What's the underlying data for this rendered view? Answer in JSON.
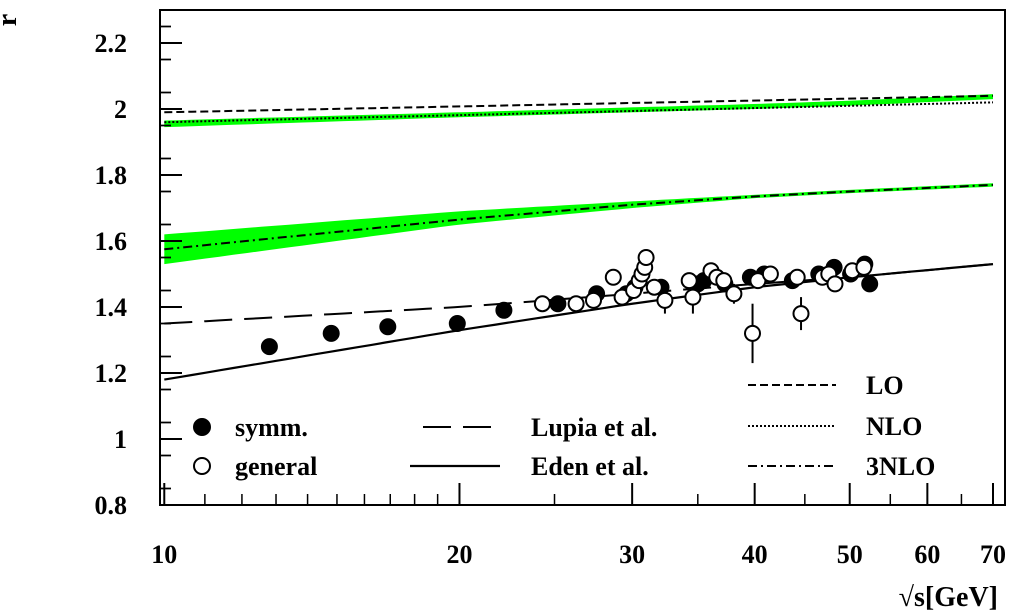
{
  "chart_data": {
    "type": "scatter",
    "title": "",
    "xlabel": "√s[GeV]",
    "ylabel": "r",
    "x_scale": "log",
    "xlim": [
      9.9,
      72
    ],
    "ylim": [
      0.8,
      2.3
    ],
    "x_ticks": [
      10,
      20,
      30,
      40,
      50,
      60,
      70
    ],
    "x_tick_labels": [
      "10",
      "20",
      "30",
      "40",
      "50",
      "60",
      "70"
    ],
    "y_ticks": [
      0.8,
      1,
      1.2,
      1.4,
      1.6,
      1.8,
      2,
      2.2
    ],
    "y_tick_labels": [
      "0.8",
      "1",
      "1.2",
      "1.4",
      "1.6",
      "1.8",
      "2",
      "2.2"
    ],
    "grid": false,
    "band_color": "#00ff00",
    "series": [
      {
        "name": "symm.",
        "kind": "points",
        "marker": "filled-circle",
        "points": [
          {
            "x": 12.8,
            "y": 1.28
          },
          {
            "x": 14.8,
            "y": 1.32
          },
          {
            "x": 16.9,
            "y": 1.34
          },
          {
            "x": 19.9,
            "y": 1.35
          },
          {
            "x": 22.2,
            "y": 1.39
          },
          {
            "x": 25.2,
            "y": 1.41
          },
          {
            "x": 27.6,
            "y": 1.44
          },
          {
            "x": 29.6,
            "y": 1.44
          },
          {
            "x": 30.2,
            "y": 1.46
          },
          {
            "x": 32.1,
            "y": 1.46
          },
          {
            "x": 35.0,
            "y": 1.47
          },
          {
            "x": 35.5,
            "y": 1.48
          },
          {
            "x": 37.3,
            "y": 1.47
          },
          {
            "x": 39.6,
            "y": 1.49
          },
          {
            "x": 40.9,
            "y": 1.5
          },
          {
            "x": 43.7,
            "y": 1.48
          },
          {
            "x": 46.5,
            "y": 1.5
          },
          {
            "x": 48.2,
            "y": 1.52
          },
          {
            "x": 50.1,
            "y": 1.5
          },
          {
            "x": 51.8,
            "y": 1.53
          },
          {
            "x": 52.4,
            "y": 1.47
          }
        ]
      },
      {
        "name": "general",
        "kind": "points",
        "marker": "open-circle",
        "points": [
          {
            "x": 24.3,
            "y": 1.41,
            "err": 0
          },
          {
            "x": 26.3,
            "y": 1.41,
            "err": 0
          },
          {
            "x": 27.4,
            "y": 1.42,
            "err": 0
          },
          {
            "x": 28.7,
            "y": 1.49,
            "err": 0
          },
          {
            "x": 29.3,
            "y": 1.43,
            "err": 0
          },
          {
            "x": 30.1,
            "y": 1.45,
            "err": 0
          },
          {
            "x": 30.5,
            "y": 1.48,
            "err": 0
          },
          {
            "x": 30.7,
            "y": 1.5,
            "err": 0
          },
          {
            "x": 30.9,
            "y": 1.52,
            "err": 0
          },
          {
            "x": 31.0,
            "y": 1.55,
            "err": 0
          },
          {
            "x": 31.6,
            "y": 1.46,
            "err": 0
          },
          {
            "x": 32.4,
            "y": 1.42,
            "err": 0.04
          },
          {
            "x": 34.3,
            "y": 1.48,
            "err": 0
          },
          {
            "x": 34.6,
            "y": 1.43,
            "err": 0.05
          },
          {
            "x": 36.1,
            "y": 1.51,
            "err": 0
          },
          {
            "x": 36.6,
            "y": 1.49,
            "err": 0
          },
          {
            "x": 37.2,
            "y": 1.48,
            "err": 0
          },
          {
            "x": 38.1,
            "y": 1.44,
            "err": 0.03
          },
          {
            "x": 39.8,
            "y": 1.32,
            "err": 0.09
          },
          {
            "x": 40.3,
            "y": 1.48,
            "err": 0
          },
          {
            "x": 41.5,
            "y": 1.5,
            "err": 0
          },
          {
            "x": 44.2,
            "y": 1.49,
            "err": 0
          },
          {
            "x": 44.6,
            "y": 1.38,
            "err": 0.05
          },
          {
            "x": 46.9,
            "y": 1.49,
            "err": 0
          },
          {
            "x": 47.6,
            "y": 1.5,
            "err": 0
          },
          {
            "x": 48.3,
            "y": 1.47,
            "err": 0
          },
          {
            "x": 50.3,
            "y": 1.51,
            "err": 0
          },
          {
            "x": 51.7,
            "y": 1.52,
            "err": 0
          }
        ]
      },
      {
        "name": "Lupia et al.",
        "kind": "line",
        "dash": "long-dash",
        "x": [
          10,
          20,
          30,
          40,
          50,
          70
        ],
        "y": [
          1.35,
          1.4,
          1.44,
          1.47,
          1.49,
          1.53
        ]
      },
      {
        "name": "Eden et al.",
        "kind": "line",
        "dash": "solid",
        "x": [
          10,
          20,
          30,
          40,
          50,
          70
        ],
        "y": [
          1.18,
          1.33,
          1.41,
          1.46,
          1.49,
          1.53
        ]
      },
      {
        "name": "LO",
        "kind": "line",
        "dash": "dashed",
        "x": [
          10,
          70
        ],
        "y": [
          1.99,
          2.04
        ]
      },
      {
        "name": "NLO",
        "kind": "line",
        "dash": "dotted",
        "x": [
          10,
          70
        ],
        "y": [
          1.96,
          2.02
        ]
      },
      {
        "name": "3NLO",
        "kind": "line",
        "dash": "dash-dot",
        "x": [
          10,
          20,
          30,
          40,
          50,
          70
        ],
        "y": [
          1.575,
          1.665,
          1.71,
          1.735,
          1.75,
          1.77
        ]
      }
    ],
    "bands": [
      {
        "x": [
          10,
          20,
          30,
          40,
          50,
          70
        ],
        "lower": [
          1.53,
          1.65,
          1.7,
          1.73,
          1.745,
          1.765
        ],
        "upper": [
          1.62,
          1.69,
          1.72,
          1.74,
          1.755,
          1.775
        ]
      },
      {
        "x": [
          10,
          20,
          30,
          40,
          50,
          70
        ],
        "lower": [
          1.945,
          1.975,
          1.99,
          2.0,
          2.01,
          2.03
        ],
        "upper": [
          1.965,
          1.99,
          2.005,
          2.015,
          2.025,
          2.045
        ]
      }
    ],
    "legend": [
      {
        "label": "symm.",
        "symbol": "filled-circle",
        "position": "bottom-left"
      },
      {
        "label": "general",
        "symbol": "open-circle",
        "position": "bottom-left"
      },
      {
        "label": "Lupia et al.",
        "symbol": "long-dash",
        "position": "bottom-center"
      },
      {
        "label": "Eden et al.",
        "symbol": "solid",
        "position": "bottom-center"
      },
      {
        "label": "LO",
        "symbol": "dashed",
        "position": "bottom-right"
      },
      {
        "label": "NLO",
        "symbol": "dotted",
        "position": "bottom-right"
      },
      {
        "label": "3NLO",
        "symbol": "dash-dot",
        "position": "bottom-right"
      }
    ]
  }
}
